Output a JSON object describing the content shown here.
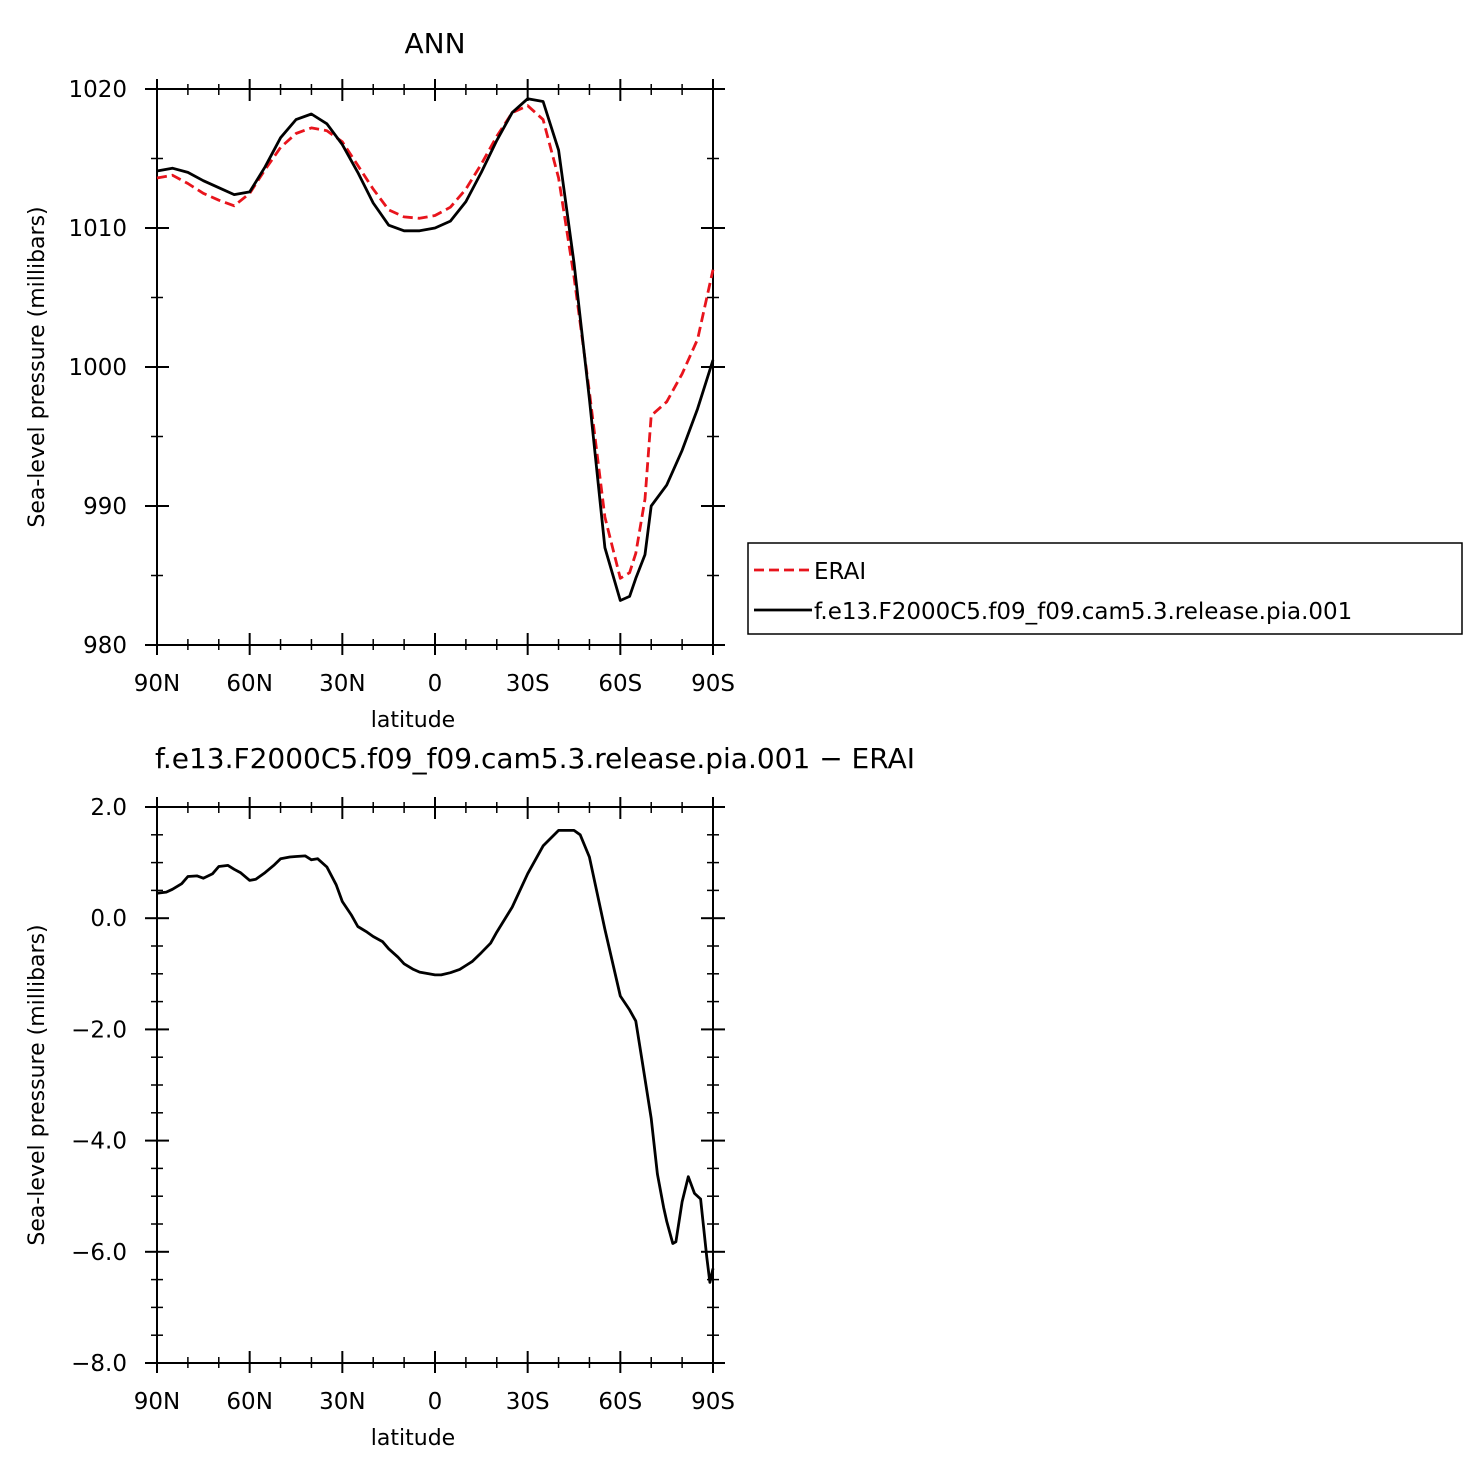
{
  "chart_data": [
    {
      "type": "line",
      "title": "ANN",
      "xlabel": "latitude",
      "ylabel": "Sea-level pressure (millibars)",
      "xlim": [
        90,
        -90
      ],
      "ylim": [
        980,
        1020
      ],
      "x_ticks": [
        90,
        60,
        30,
        0,
        -30,
        -60,
        -90
      ],
      "x_tick_labels": [
        "90N",
        "60N",
        "30N",
        "0",
        "30S",
        "60S",
        "90S"
      ],
      "y_ticks": [
        980,
        990,
        1000,
        1010,
        1020
      ],
      "y_tick_labels": [
        "980",
        "990",
        "1000",
        "1010",
        "1020"
      ],
      "grid": false,
      "legend_position": "right",
      "x": [
        90,
        85,
        80,
        75,
        70,
        65,
        60,
        55,
        50,
        45,
        40,
        35,
        30,
        25,
        20,
        15,
        10,
        5,
        0,
        -5,
        -10,
        -15,
        -20,
        -25,
        -30,
        -35,
        -40,
        -45,
        -50,
        -55,
        -60,
        -63,
        -65,
        -68,
        -70,
        -75,
        -80,
        -85,
        -90
      ],
      "series": [
        {
          "name": "ERAI",
          "color": "#e8141c",
          "dash": true,
          "values": [
            1013.6,
            1013.8,
            1013.2,
            1012.5,
            1012.0,
            1011.6,
            1012.5,
            1014.2,
            1015.8,
            1016.8,
            1017.2,
            1017.0,
            1016.2,
            1014.5,
            1012.8,
            1011.3,
            1010.8,
            1010.7,
            1010.9,
            1011.5,
            1012.8,
            1014.6,
            1016.6,
            1018.3,
            1018.8,
            1017.8,
            1013.6,
            1006.5,
            998.2,
            989.2,
            984.8,
            985.2,
            986.6,
            990.5,
            996.5,
            997.5,
            999.5,
            1002.0,
            1007.0
          ]
        },
        {
          "name": "f.e13.F2000C5.f09_f09.cam5.3.release.pia.001",
          "color": "#000000",
          "dash": false,
          "values": [
            1014.1,
            1014.3,
            1014.0,
            1013.4,
            1012.9,
            1012.4,
            1012.6,
            1014.4,
            1016.5,
            1017.8,
            1018.2,
            1017.5,
            1016.0,
            1014.0,
            1011.8,
            1010.2,
            1009.8,
            1009.8,
            1010.0,
            1010.5,
            1011.9,
            1014.0,
            1016.3,
            1018.3,
            1019.3,
            1019.1,
            1015.6,
            1007.5,
            997.7,
            987.0,
            983.2,
            983.5,
            984.8,
            986.5,
            990.0,
            991.5,
            994.0,
            997.0,
            1000.5
          ]
        }
      ]
    },
    {
      "type": "line",
      "title": "f.e13.F2000C5.f09_f09.cam5.3.release.pia.001 − ERAI",
      "xlabel": "latitude",
      "ylabel": "Sea-level pressure (millibars)",
      "xlim": [
        90,
        -90
      ],
      "ylim": [
        -8,
        2
      ],
      "x_ticks": [
        90,
        60,
        30,
        0,
        -30,
        -60,
        -90
      ],
      "x_tick_labels": [
        "90N",
        "60N",
        "30N",
        "0",
        "30S",
        "60S",
        "90S"
      ],
      "y_ticks": [
        -8,
        -6,
        -4,
        -2,
        0,
        2
      ],
      "y_tick_labels": [
        "−8.0",
        "−6.0",
        "−4.0",
        "−2.0",
        "0.0",
        "2.0"
      ],
      "grid": false,
      "x": [
        90,
        87,
        85,
        82,
        80,
        77,
        75,
        72,
        70,
        67,
        65,
        63,
        60,
        58,
        55,
        52,
        50,
        47,
        45,
        42,
        40,
        38,
        35,
        32,
        30,
        27,
        25,
        22,
        20,
        17,
        15,
        12,
        10,
        7,
        5,
        2,
        0,
        -2,
        -5,
        -8,
        -10,
        -12,
        -15,
        -18,
        -20,
        -25,
        -30,
        -35,
        -40,
        -45,
        -47,
        -50,
        -55,
        -60,
        -63,
        -65,
        -67,
        -70,
        -72,
        -74,
        -75,
        -77,
        -78,
        -80,
        -82,
        -84,
        -86,
        -88,
        -89,
        -90
      ],
      "series": [
        {
          "name": "",
          "color": "#000000",
          "dash": false,
          "values": [
            0.45,
            0.47,
            0.52,
            0.62,
            0.75,
            0.76,
            0.72,
            0.8,
            0.93,
            0.95,
            0.88,
            0.82,
            0.68,
            0.7,
            0.82,
            0.96,
            1.07,
            1.1,
            1.11,
            1.12,
            1.05,
            1.07,
            0.92,
            0.6,
            0.3,
            0.05,
            -0.15,
            -0.25,
            -0.33,
            -0.42,
            -0.55,
            -0.7,
            -0.82,
            -0.92,
            -0.97,
            -1.0,
            -1.02,
            -1.02,
            -0.98,
            -0.92,
            -0.85,
            -0.78,
            -0.62,
            -0.45,
            -0.25,
            0.2,
            0.8,
            1.3,
            1.58,
            1.58,
            1.5,
            1.1,
            -0.2,
            -1.4,
            -1.65,
            -1.85,
            -2.55,
            -3.6,
            -4.6,
            -5.2,
            -5.45,
            -5.85,
            -5.82,
            -5.1,
            -4.65,
            -4.95,
            -5.05,
            -6.1,
            -6.55,
            -6.3
          ]
        }
      ]
    }
  ]
}
